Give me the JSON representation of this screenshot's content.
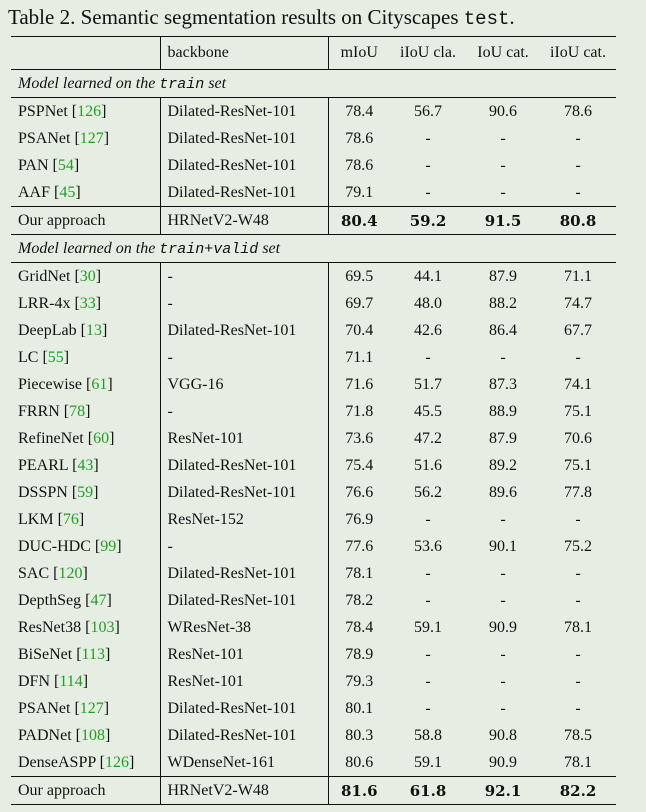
{
  "caption": {
    "prefix": "Table 2. Semantic segmentation results on Cityscapes ",
    "mono": "test",
    "suffix": "."
  },
  "headers": [
    "",
    "backbone",
    "mIoU",
    "iIoU cla.",
    "IoU cat.",
    "iIoU cat."
  ],
  "sections": [
    {
      "title_prefix": "Model learned on the ",
      "title_mono": "train",
      "title_suffix": " set",
      "rows": [
        {
          "method": "PSPNet",
          "ref": "126",
          "backbone": "Dilated-ResNet-101",
          "miou": "78.4",
          "iiou_cla": "56.7",
          "iou_cat": "90.6",
          "iiou_cat": "78.6"
        },
        {
          "method": "PSANet",
          "ref": "127",
          "backbone": "Dilated-ResNet-101",
          "miou": "78.6",
          "iiou_cla": "-",
          "iou_cat": "-",
          "iiou_cat": "-"
        },
        {
          "method": "PAN",
          "ref": "54",
          "backbone": "Dilated-ResNet-101",
          "miou": "78.6",
          "iiou_cla": "-",
          "iou_cat": "-",
          "iiou_cat": "-"
        },
        {
          "method": "AAF",
          "ref": "45",
          "backbone": "Dilated-ResNet-101",
          "miou": "79.1",
          "iiou_cla": "-",
          "iou_cat": "-",
          "iiou_cat": "-"
        }
      ],
      "ours": {
        "method": "Our approach",
        "backbone": "HRNetV2-W48",
        "miou": "80.4",
        "iiou_cla": "59.2",
        "iou_cat": "91.5",
        "iiou_cat": "80.8"
      }
    },
    {
      "title_prefix": "Model learned on the ",
      "title_mono": "train+valid",
      "title_suffix": " set",
      "rows": [
        {
          "method": "GridNet",
          "ref": "30",
          "backbone": "-",
          "miou": "69.5",
          "iiou_cla": "44.1",
          "iou_cat": "87.9",
          "iiou_cat": "71.1"
        },
        {
          "method": "LRR-4x",
          "ref": "33",
          "backbone": "-",
          "miou": "69.7",
          "iiou_cla": "48.0",
          "iou_cat": "88.2",
          "iiou_cat": "74.7"
        },
        {
          "method": "DeepLab",
          "ref": "13",
          "backbone": "Dilated-ResNet-101",
          "miou": "70.4",
          "iiou_cla": "42.6",
          "iou_cat": "86.4",
          "iiou_cat": "67.7"
        },
        {
          "method": "LC",
          "ref": "55",
          "backbone": "-",
          "miou": "71.1",
          "iiou_cla": "-",
          "iou_cat": "-",
          "iiou_cat": "-"
        },
        {
          "method": "Piecewise",
          "ref": "61",
          "backbone": "VGG-16",
          "miou": "71.6",
          "iiou_cla": "51.7",
          "iou_cat": "87.3",
          "iiou_cat": "74.1"
        },
        {
          "method": "FRRN",
          "ref": "78",
          "backbone": "-",
          "miou": "71.8",
          "iiou_cla": "45.5",
          "iou_cat": "88.9",
          "iiou_cat": "75.1"
        },
        {
          "method": "RefineNet",
          "ref": "60",
          "backbone": "ResNet-101",
          "miou": "73.6",
          "iiou_cla": "47.2",
          "iou_cat": "87.9",
          "iiou_cat": "70.6"
        },
        {
          "method": "PEARL",
          "ref": "43",
          "backbone": "Dilated-ResNet-101",
          "miou": "75.4",
          "iiou_cla": "51.6",
          "iou_cat": "89.2",
          "iiou_cat": "75.1"
        },
        {
          "method": "DSSPN",
          "ref": "59",
          "backbone": "Dilated-ResNet-101",
          "miou": "76.6",
          "iiou_cla": "56.2",
          "iou_cat": "89.6",
          "iiou_cat": "77.8"
        },
        {
          "method": "LKM",
          "ref": "76",
          "backbone": "ResNet-152",
          "miou": "76.9",
          "iiou_cla": "-",
          "iou_cat": "-",
          "iiou_cat": "-"
        },
        {
          "method": "DUC-HDC",
          "ref": "99",
          "backbone": "-",
          "miou": "77.6",
          "iiou_cla": "53.6",
          "iou_cat": "90.1",
          "iiou_cat": "75.2"
        },
        {
          "method": "SAC",
          "ref": "120",
          "backbone": "Dilated-ResNet-101",
          "miou": "78.1",
          "iiou_cla": "-",
          "iou_cat": "-",
          "iiou_cat": "-"
        },
        {
          "method": "DepthSeg",
          "ref": "47",
          "backbone": "Dilated-ResNet-101",
          "miou": "78.2",
          "iiou_cla": "-",
          "iou_cat": "-",
          "iiou_cat": "-"
        },
        {
          "method": "ResNet38",
          "ref": "103",
          "backbone": "WResNet-38",
          "miou": "78.4",
          "iiou_cla": "59.1",
          "iou_cat": "90.9",
          "iiou_cat": "78.1"
        },
        {
          "method": "BiSeNet",
          "ref": "113",
          "backbone": "ResNet-101",
          "miou": "78.9",
          "iiou_cla": "-",
          "iou_cat": "-",
          "iiou_cat": "-"
        },
        {
          "method": "DFN",
          "ref": "114",
          "backbone": "ResNet-101",
          "miou": "79.3",
          "iiou_cla": "-",
          "iou_cat": "-",
          "iiou_cat": "-"
        },
        {
          "method": "PSANet",
          "ref": "127",
          "backbone": "Dilated-ResNet-101",
          "miou": "80.1",
          "iiou_cla": "-",
          "iou_cat": "-",
          "iiou_cat": "-"
        },
        {
          "method": "PADNet",
          "ref": "108",
          "backbone": "Dilated-ResNet-101",
          "miou": "80.3",
          "iiou_cla": "58.8",
          "iou_cat": "90.8",
          "iiou_cat": "78.5"
        },
        {
          "method": "DenseASPP",
          "ref": "126",
          "backbone": "WDenseNet-161",
          "miou": "80.6",
          "iiou_cla": "59.1",
          "iou_cat": "90.9",
          "iiou_cat": "78.1"
        }
      ],
      "ours": {
        "method": "Our approach",
        "backbone": "HRNetV2-W48",
        "miou": "81.6",
        "iiou_cla": "61.8",
        "iou_cat": "92.1",
        "iiou_cat": "82.2"
      }
    }
  ]
}
